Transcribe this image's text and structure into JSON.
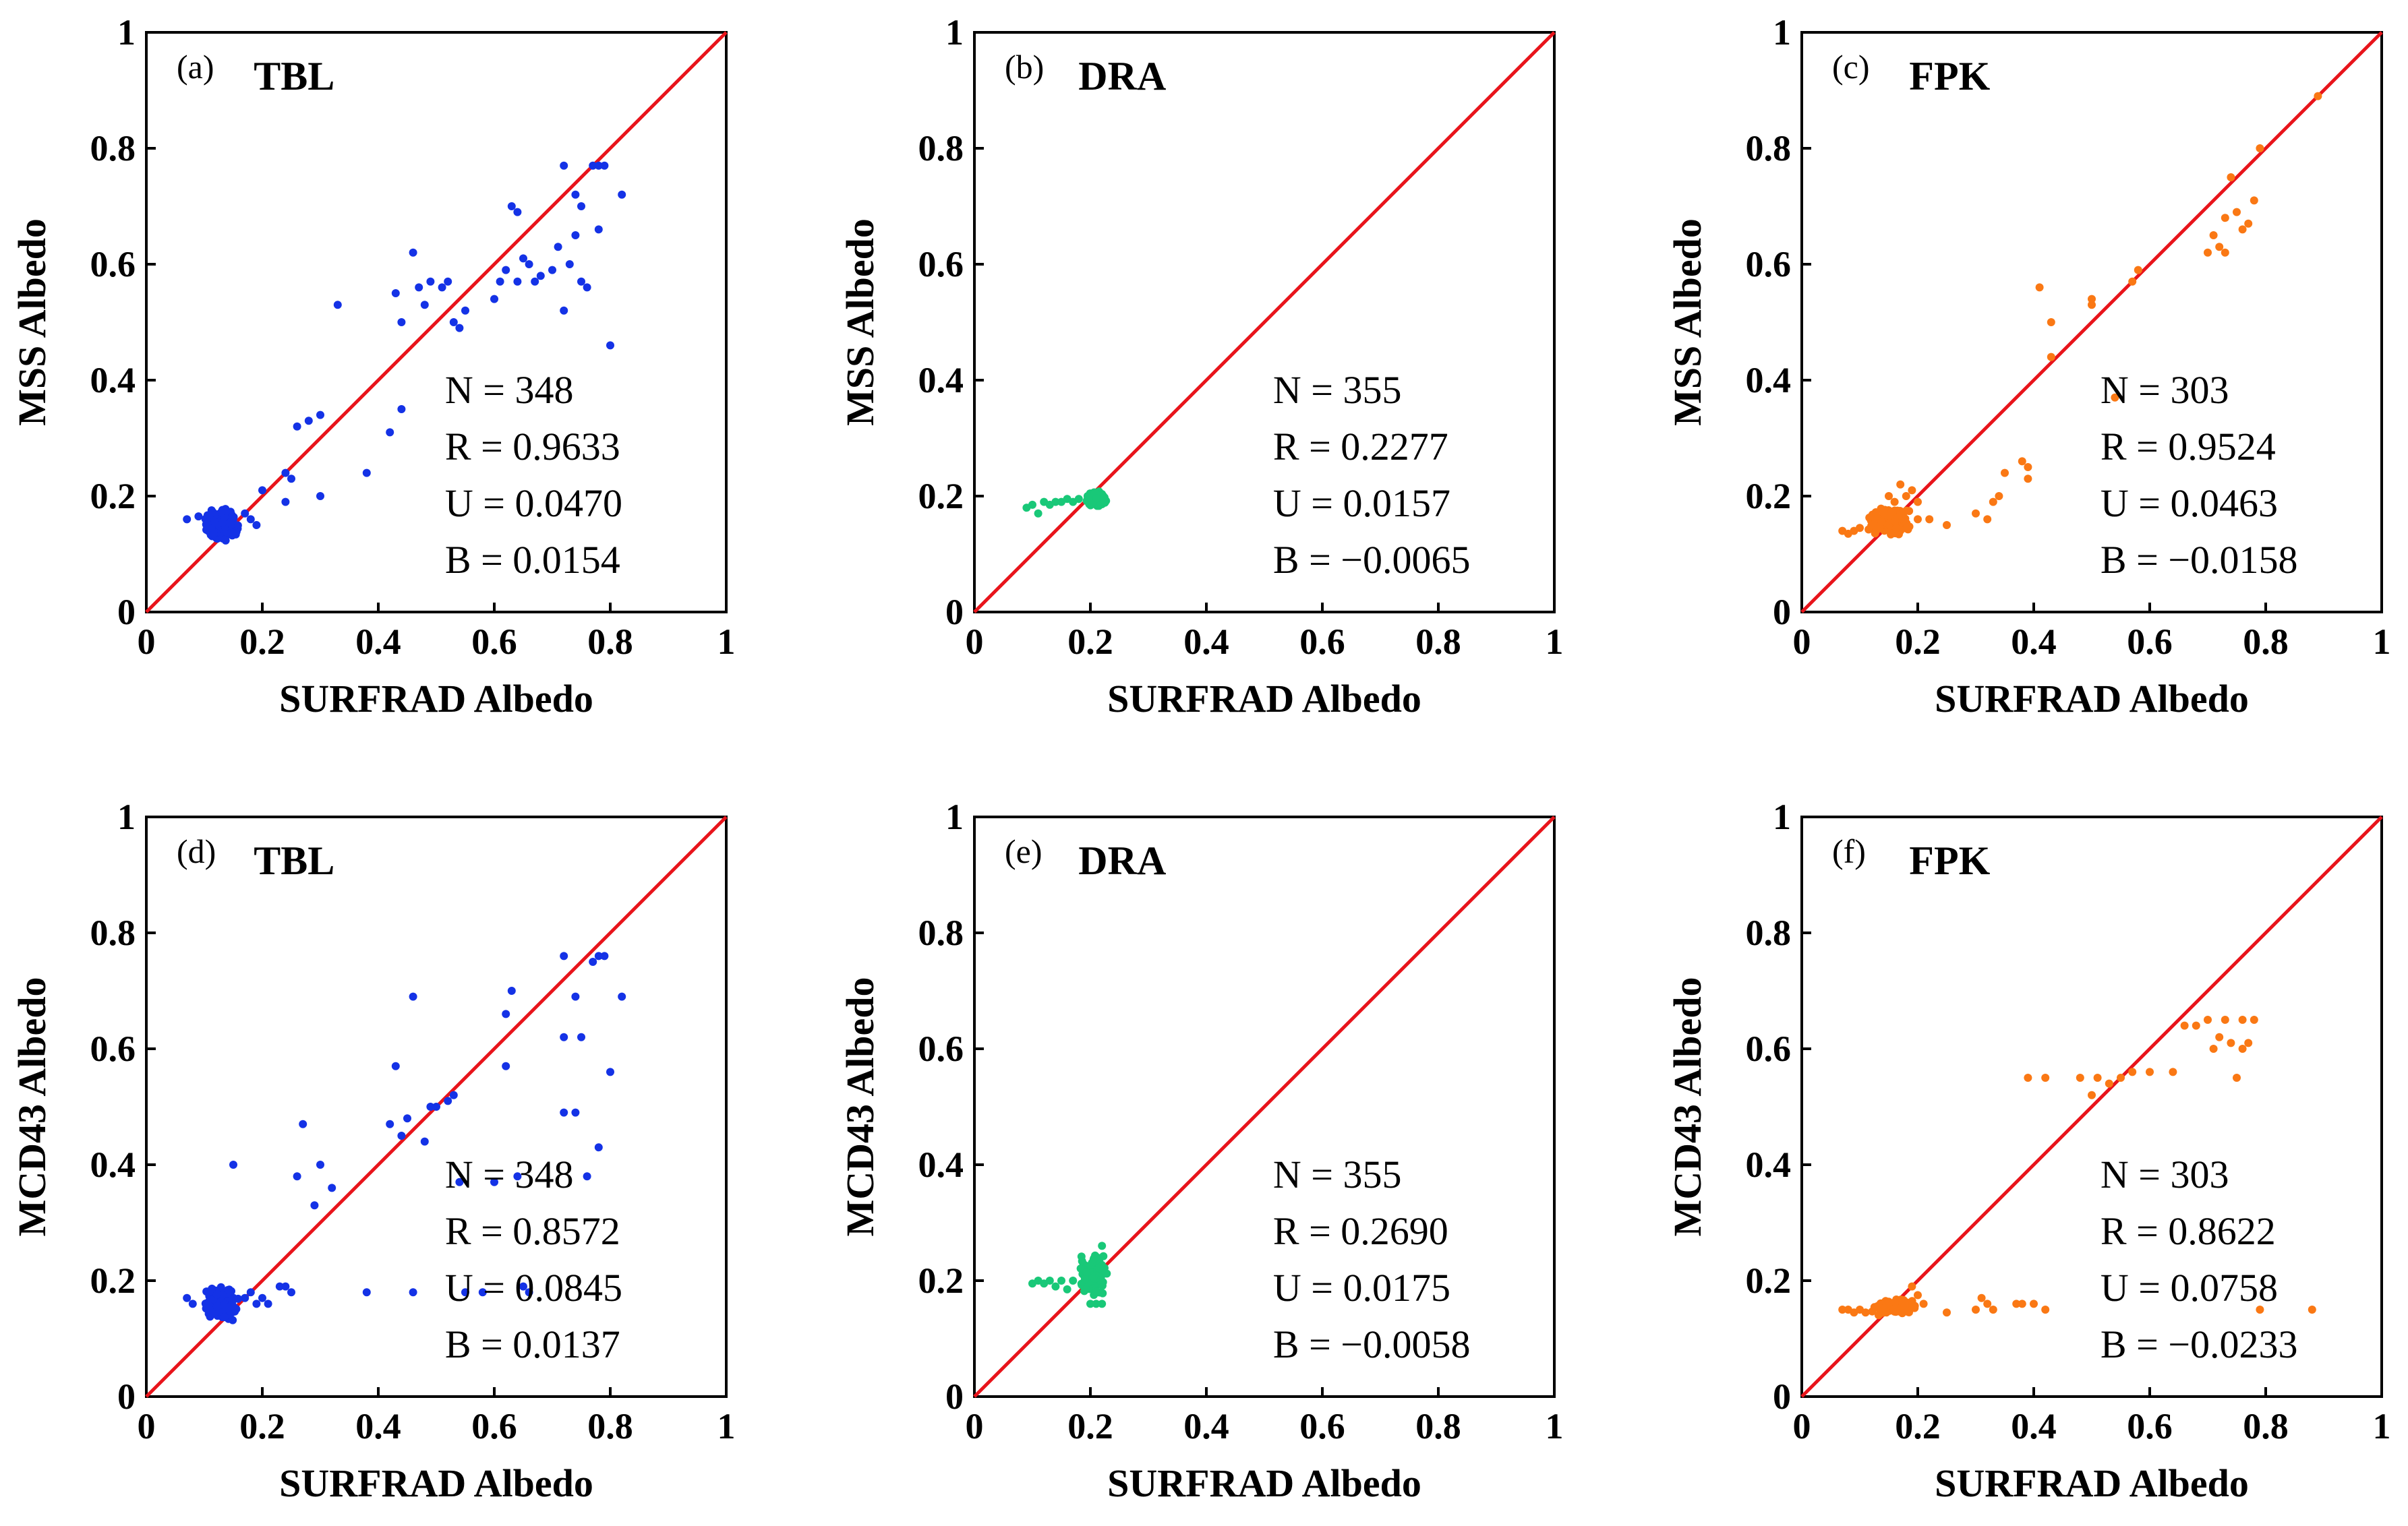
{
  "chart_data": [
    {
      "type": "scatter",
      "panel_label": "(a)",
      "title": "TBL",
      "xlabel": "SURFRAD Albedo",
      "ylabel": "MSS Albedo",
      "xlim": [
        0,
        1
      ],
      "ylim": [
        0,
        1
      ],
      "ticks": [
        "0",
        "0.2",
        "0.4",
        "0.6",
        "0.8",
        "1"
      ],
      "color": "#1432e6",
      "reference_line": "1:1",
      "grid": false,
      "stats": [
        "N = 348",
        "R = 0.9633",
        "U = 0.0470",
        "B = 0.0154"
      ],
      "cluster": {
        "x_range": [
          0.1,
          0.16
        ],
        "y_range": [
          0.12,
          0.18
        ],
        "count": 140
      },
      "points": [
        [
          0.07,
          0.16
        ],
        [
          0.09,
          0.165
        ],
        [
          0.17,
          0.17
        ],
        [
          0.18,
          0.16
        ],
        [
          0.19,
          0.15
        ],
        [
          0.2,
          0.21
        ],
        [
          0.24,
          0.24
        ],
        [
          0.25,
          0.23
        ],
        [
          0.24,
          0.19
        ],
        [
          0.26,
          0.32
        ],
        [
          0.28,
          0.33
        ],
        [
          0.3,
          0.34
        ],
        [
          0.3,
          0.2
        ],
        [
          0.33,
          0.53
        ],
        [
          0.38,
          0.24
        ],
        [
          0.42,
          0.31
        ],
        [
          0.43,
          0.55
        ],
        [
          0.44,
          0.5
        ],
        [
          0.44,
          0.35
        ],
        [
          0.46,
          0.62
        ],
        [
          0.47,
          0.56
        ],
        [
          0.48,
          0.53
        ],
        [
          0.49,
          0.57
        ],
        [
          0.51,
          0.56
        ],
        [
          0.52,
          0.57
        ],
        [
          0.53,
          0.5
        ],
        [
          0.54,
          0.49
        ],
        [
          0.55,
          0.52
        ],
        [
          0.6,
          0.54
        ],
        [
          0.61,
          0.57
        ],
        [
          0.62,
          0.59
        ],
        [
          0.63,
          0.7
        ],
        [
          0.64,
          0.69
        ],
        [
          0.64,
          0.57
        ],
        [
          0.65,
          0.61
        ],
        [
          0.66,
          0.6
        ],
        [
          0.67,
          0.57
        ],
        [
          0.68,
          0.58
        ],
        [
          0.7,
          0.59
        ],
        [
          0.71,
          0.63
        ],
        [
          0.72,
          0.52
        ],
        [
          0.72,
          0.77
        ],
        [
          0.73,
          0.6
        ],
        [
          0.74,
          0.72
        ],
        [
          0.74,
          0.65
        ],
        [
          0.75,
          0.57
        ],
        [
          0.75,
          0.7
        ],
        [
          0.76,
          0.56
        ],
        [
          0.77,
          0.77
        ],
        [
          0.78,
          0.77
        ],
        [
          0.78,
          0.66
        ],
        [
          0.79,
          0.77
        ],
        [
          0.8,
          0.46
        ],
        [
          0.82,
          0.72
        ]
      ]
    },
    {
      "type": "scatter",
      "panel_label": "(b)",
      "title": "DRA",
      "xlabel": "SURFRAD Albedo",
      "ylabel": "MSS Albedo",
      "xlim": [
        0,
        1
      ],
      "ylim": [
        0,
        1
      ],
      "ticks": [
        "0",
        "0.2",
        "0.4",
        "0.6",
        "0.8",
        "1"
      ],
      "color": "#19c878",
      "reference_line": "1:1",
      "grid": false,
      "stats": [
        "N = 355",
        "R = 0.2277",
        "U = 0.0157",
        "B = −0.0065"
      ],
      "cluster": {
        "x_range": [
          0.19,
          0.23
        ],
        "y_range": [
          0.18,
          0.21
        ],
        "count": 110
      },
      "points": [
        [
          0.09,
          0.18
        ],
        [
          0.1,
          0.185
        ],
        [
          0.11,
          0.17
        ],
        [
          0.12,
          0.19
        ],
        [
          0.13,
          0.185
        ],
        [
          0.14,
          0.19
        ],
        [
          0.15,
          0.19
        ],
        [
          0.16,
          0.195
        ],
        [
          0.17,
          0.19
        ],
        [
          0.18,
          0.195
        ]
      ]
    },
    {
      "type": "scatter",
      "panel_label": "(c)",
      "title": "FPK",
      "xlabel": "SURFRAD Albedo",
      "ylabel": "MSS Albedo",
      "xlim": [
        0,
        1
      ],
      "ylim": [
        0,
        1
      ],
      "ticks": [
        "0",
        "0.2",
        "0.4",
        "0.6",
        "0.8",
        "1"
      ],
      "color": "#fa7814",
      "reference_line": "1:1",
      "grid": false,
      "stats": [
        "N = 303",
        "R = 0.9524",
        "U = 0.0463",
        "B = −0.0158"
      ],
      "cluster": {
        "x_range": [
          0.11,
          0.19
        ],
        "y_range": [
          0.13,
          0.18
        ],
        "count": 120
      },
      "points": [
        [
          0.07,
          0.14
        ],
        [
          0.08,
          0.135
        ],
        [
          0.09,
          0.14
        ],
        [
          0.1,
          0.145
        ],
        [
          0.15,
          0.2
        ],
        [
          0.16,
          0.19
        ],
        [
          0.17,
          0.22
        ],
        [
          0.18,
          0.2
        ],
        [
          0.19,
          0.21
        ],
        [
          0.2,
          0.19
        ],
        [
          0.2,
          0.16
        ],
        [
          0.22,
          0.16
        ],
        [
          0.25,
          0.15
        ],
        [
          0.3,
          0.17
        ],
        [
          0.32,
          0.16
        ],
        [
          0.33,
          0.19
        ],
        [
          0.34,
          0.2
        ],
        [
          0.35,
          0.24
        ],
        [
          0.38,
          0.26
        ],
        [
          0.39,
          0.25
        ],
        [
          0.39,
          0.23
        ],
        [
          0.41,
          0.56
        ],
        [
          0.43,
          0.5
        ],
        [
          0.43,
          0.44
        ],
        [
          0.5,
          0.53
        ],
        [
          0.5,
          0.54
        ],
        [
          0.54,
          0.37
        ],
        [
          0.57,
          0.57
        ],
        [
          0.58,
          0.59
        ],
        [
          0.7,
          0.62
        ],
        [
          0.71,
          0.65
        ],
        [
          0.72,
          0.63
        ],
        [
          0.73,
          0.62
        ],
        [
          0.73,
          0.68
        ],
        [
          0.74,
          0.75
        ],
        [
          0.75,
          0.69
        ],
        [
          0.76,
          0.66
        ],
        [
          0.77,
          0.67
        ],
        [
          0.78,
          0.71
        ],
        [
          0.79,
          0.8
        ],
        [
          0.89,
          0.89
        ]
      ]
    },
    {
      "type": "scatter",
      "panel_label": "(d)",
      "title": "TBL",
      "xlabel": "SURFRAD Albedo",
      "ylabel": "MCD43 Albedo",
      "xlim": [
        0,
        1
      ],
      "ylim": [
        0,
        1
      ],
      "ticks": [
        "0",
        "0.2",
        "0.4",
        "0.6",
        "0.8",
        "1"
      ],
      "color": "#1432e6",
      "reference_line": "1:1",
      "grid": false,
      "stats": [
        "N = 348",
        "R = 0.8572",
        "U = 0.0845",
        "B = 0.0137"
      ],
      "cluster": {
        "x_range": [
          0.1,
          0.16
        ],
        "y_range": [
          0.13,
          0.19
        ],
        "count": 150
      },
      "points": [
        [
          0.07,
          0.17
        ],
        [
          0.08,
          0.16
        ],
        [
          0.15,
          0.4
        ],
        [
          0.17,
          0.17
        ],
        [
          0.18,
          0.18
        ],
        [
          0.19,
          0.16
        ],
        [
          0.2,
          0.17
        ],
        [
          0.21,
          0.16
        ],
        [
          0.23,
          0.19
        ],
        [
          0.24,
          0.19
        ],
        [
          0.25,
          0.18
        ],
        [
          0.26,
          0.38
        ],
        [
          0.27,
          0.47
        ],
        [
          0.29,
          0.33
        ],
        [
          0.3,
          0.4
        ],
        [
          0.32,
          0.36
        ],
        [
          0.38,
          0.18
        ],
        [
          0.42,
          0.47
        ],
        [
          0.43,
          0.57
        ],
        [
          0.44,
          0.45
        ],
        [
          0.45,
          0.48
        ],
        [
          0.46,
          0.18
        ],
        [
          0.46,
          0.69
        ],
        [
          0.48,
          0.44
        ],
        [
          0.49,
          0.5
        ],
        [
          0.5,
          0.5
        ],
        [
          0.52,
          0.51
        ],
        [
          0.53,
          0.52
        ],
        [
          0.54,
          0.37
        ],
        [
          0.55,
          0.18
        ],
        [
          0.58,
          0.18
        ],
        [
          0.6,
          0.37
        ],
        [
          0.62,
          0.57
        ],
        [
          0.62,
          0.66
        ],
        [
          0.63,
          0.7
        ],
        [
          0.64,
          0.38
        ],
        [
          0.65,
          0.19
        ],
        [
          0.66,
          0.18
        ],
        [
          0.72,
          0.49
        ],
        [
          0.72,
          0.62
        ],
        [
          0.72,
          0.76
        ],
        [
          0.74,
          0.69
        ],
        [
          0.74,
          0.49
        ],
        [
          0.75,
          0.62
        ],
        [
          0.76,
          0.38
        ],
        [
          0.77,
          0.75
        ],
        [
          0.78,
          0.43
        ],
        [
          0.78,
          0.76
        ],
        [
          0.79,
          0.76
        ],
        [
          0.8,
          0.56
        ],
        [
          0.82,
          0.69
        ]
      ]
    },
    {
      "type": "scatter",
      "panel_label": "(e)",
      "title": "DRA",
      "xlabel": "SURFRAD Albedo",
      "ylabel": "MCD43 Albedo",
      "xlim": [
        0,
        1
      ],
      "ylim": [
        0,
        1
      ],
      "ticks": [
        "0",
        "0.2",
        "0.4",
        "0.6",
        "0.8",
        "1"
      ],
      "color": "#19c878",
      "reference_line": "1:1",
      "grid": false,
      "stats": [
        "N = 355",
        "R = 0.2690",
        "U = 0.0175",
        "B = −0.0058"
      ],
      "cluster": {
        "x_range": [
          0.18,
          0.23
        ],
        "y_range": [
          0.17,
          0.25
        ],
        "count": 110
      },
      "points": [
        [
          0.1,
          0.195
        ],
        [
          0.11,
          0.2
        ],
        [
          0.12,
          0.195
        ],
        [
          0.13,
          0.2
        ],
        [
          0.14,
          0.19
        ],
        [
          0.15,
          0.2
        ],
        [
          0.16,
          0.185
        ],
        [
          0.17,
          0.2
        ],
        [
          0.2,
          0.16
        ],
        [
          0.21,
          0.16
        ],
        [
          0.22,
          0.26
        ],
        [
          0.22,
          0.16
        ]
      ]
    },
    {
      "type": "scatter",
      "panel_label": "(f)",
      "title": "FPK",
      "xlabel": "SURFRAD Albedo",
      "ylabel": "MCD43 Albedo",
      "xlim": [
        0,
        1
      ],
      "ylim": [
        0,
        1
      ],
      "ticks": [
        "0",
        "0.2",
        "0.4",
        "0.6",
        "0.8",
        "1"
      ],
      "color": "#fa7814",
      "reference_line": "1:1",
      "grid": false,
      "stats": [
        "N = 303",
        "R = 0.8622",
        "U = 0.0758",
        "B = −0.0233"
      ],
      "cluster": {
        "x_range": [
          0.12,
          0.2
        ],
        "y_range": [
          0.14,
          0.17
        ],
        "count": 130
      },
      "points": [
        [
          0.07,
          0.15
        ],
        [
          0.08,
          0.15
        ],
        [
          0.09,
          0.145
        ],
        [
          0.1,
          0.15
        ],
        [
          0.11,
          0.145
        ],
        [
          0.19,
          0.19
        ],
        [
          0.2,
          0.175
        ],
        [
          0.21,
          0.16
        ],
        [
          0.25,
          0.145
        ],
        [
          0.3,
          0.15
        ],
        [
          0.31,
          0.17
        ],
        [
          0.32,
          0.16
        ],
        [
          0.33,
          0.15
        ],
        [
          0.37,
          0.16
        ],
        [
          0.38,
          0.16
        ],
        [
          0.4,
          0.16
        ],
        [
          0.42,
          0.15
        ],
        [
          0.39,
          0.55
        ],
        [
          0.42,
          0.55
        ],
        [
          0.48,
          0.55
        ],
        [
          0.5,
          0.52
        ],
        [
          0.51,
          0.55
        ],
        [
          0.53,
          0.54
        ],
        [
          0.55,
          0.55
        ],
        [
          0.57,
          0.56
        ],
        [
          0.6,
          0.56
        ],
        [
          0.64,
          0.56
        ],
        [
          0.66,
          0.64
        ],
        [
          0.68,
          0.64
        ],
        [
          0.7,
          0.65
        ],
        [
          0.71,
          0.6
        ],
        [
          0.72,
          0.62
        ],
        [
          0.73,
          0.65
        ],
        [
          0.74,
          0.61
        ],
        [
          0.75,
          0.55
        ],
        [
          0.76,
          0.6
        ],
        [
          0.76,
          0.65
        ],
        [
          0.77,
          0.61
        ],
        [
          0.78,
          0.65
        ],
        [
          0.79,
          0.15
        ],
        [
          0.88,
          0.15
        ]
      ]
    }
  ]
}
